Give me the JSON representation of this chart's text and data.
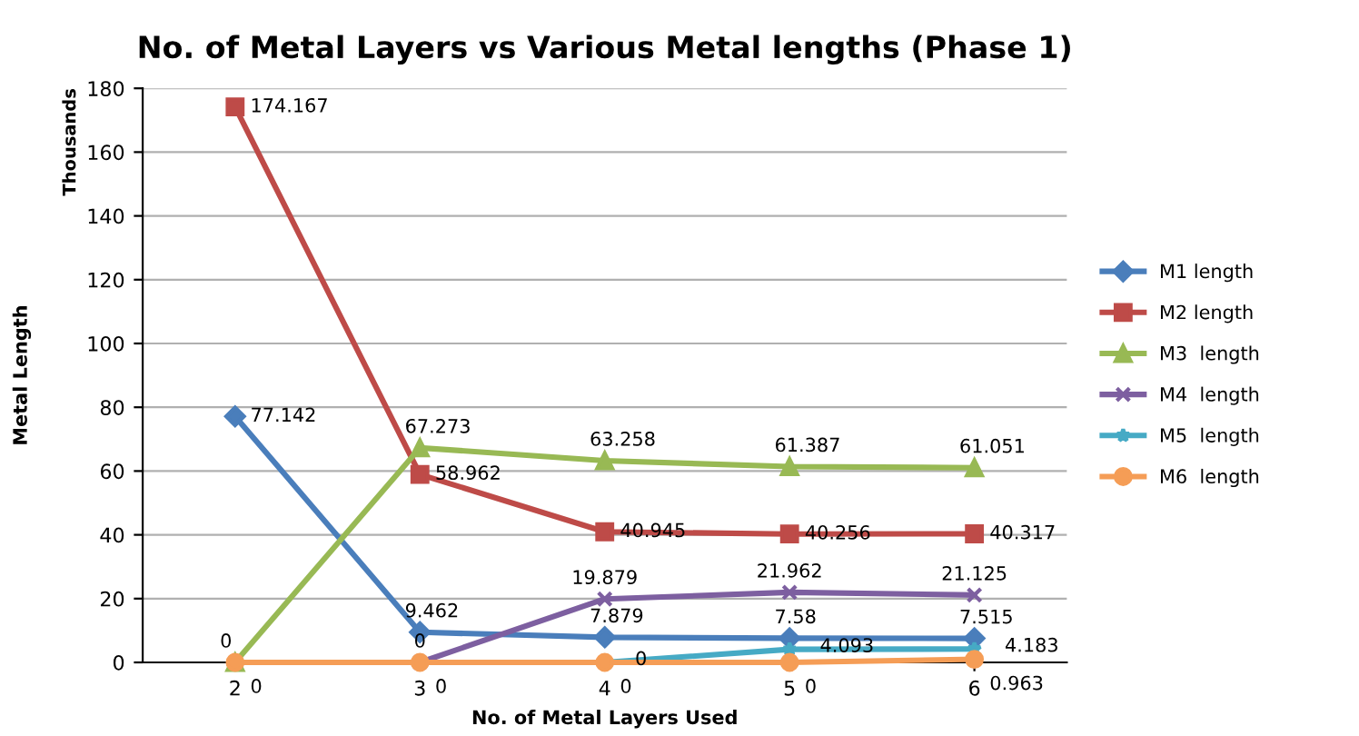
{
  "chart_data": {
    "type": "line",
    "title": "No. of Metal Layers vs Various Metal lengths (Phase 1)",
    "xlabel": "No. of Metal Layers Used",
    "ylabel": "Metal Length",
    "annotations": [
      "Thousands"
    ],
    "categories": [
      "2",
      "3",
      "4",
      "5",
      "6"
    ],
    "ylim": [
      0,
      180
    ],
    "yticks": [
      0,
      20,
      40,
      60,
      80,
      100,
      120,
      140,
      160,
      180
    ],
    "grid": "y",
    "legend": "right",
    "data_labels": true,
    "series": [
      {
        "name": "M1 length",
        "color": "#4a7ebb",
        "marker": "diamond",
        "values": [
          77.142,
          9.462,
          7.879,
          7.58,
          7.515
        ]
      },
      {
        "name": "M2 length",
        "color": "#be4b48",
        "marker": "square",
        "values": [
          174.167,
          58.962,
          40.945,
          40.256,
          40.317
        ]
      },
      {
        "name": "M3  length",
        "color": "#98b954",
        "marker": "triangle",
        "values": [
          0,
          67.273,
          63.258,
          61.387,
          61.051
        ]
      },
      {
        "name": "M4  length",
        "color": "#7d5fa0",
        "marker": "cross",
        "values": [
          null,
          0,
          19.879,
          21.962,
          21.125
        ]
      },
      {
        "name": "M5  length",
        "color": "#46aac5",
        "marker": "star",
        "values": [
          null,
          null,
          0,
          4.093,
          4.183
        ]
      },
      {
        "name": "M6  length",
        "color": "#f59d56",
        "marker": "circle",
        "values": [
          0,
          0,
          0,
          0,
          0.963
        ]
      }
    ]
  }
}
